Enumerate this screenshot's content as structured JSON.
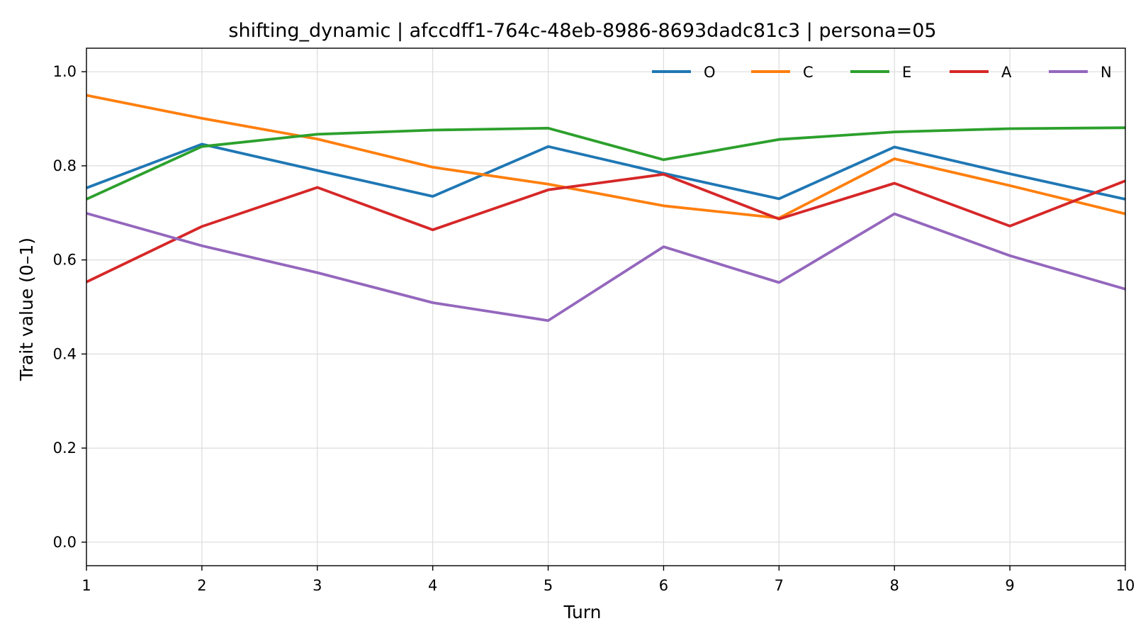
{
  "chart_data": {
    "type": "line",
    "title": "shifting_dynamic | afccdff1-764c-48eb-8986-8693dadc81c3 | persona=05",
    "xlabel": "Turn",
    "ylabel": "Trait value (0–1)",
    "x": [
      1,
      2,
      3,
      4,
      5,
      6,
      7,
      8,
      9,
      10
    ],
    "xlim": [
      1,
      10
    ],
    "ylim": [
      -0.05,
      1.05
    ],
    "xticks": [
      "1",
      "2",
      "3",
      "4",
      "5",
      "6",
      "7",
      "8",
      "9",
      "10"
    ],
    "yticks": [
      "0.0",
      "0.2",
      "0.4",
      "0.6",
      "0.8",
      "1.0"
    ],
    "grid": true,
    "legend_position": "top-right",
    "series": [
      {
        "name": "O",
        "color": "#1f77b4",
        "values": [
          0.753,
          0.846,
          0.79,
          0.735,
          0.841,
          0.784,
          0.73,
          0.84,
          0.783,
          0.729
        ]
      },
      {
        "name": "C",
        "color": "#ff7f0e",
        "values": [
          0.95,
          0.901,
          0.857,
          0.797,
          0.761,
          0.715,
          0.689,
          0.815,
          0.758,
          0.698
        ]
      },
      {
        "name": "E",
        "color": "#2ca02c",
        "values": [
          0.729,
          0.841,
          0.867,
          0.876,
          0.88,
          0.813,
          0.856,
          0.872,
          0.879,
          0.881
        ]
      },
      {
        "name": "A",
        "color": "#d62728",
        "values": [
          0.553,
          0.671,
          0.754,
          0.664,
          0.749,
          0.782,
          0.687,
          0.763,
          0.672,
          0.768
        ]
      },
      {
        "name": "N",
        "color": "#9467bd",
        "values": [
          0.699,
          0.63,
          0.573,
          0.509,
          0.471,
          0.628,
          0.552,
          0.698,
          0.609,
          0.538
        ]
      }
    ]
  }
}
